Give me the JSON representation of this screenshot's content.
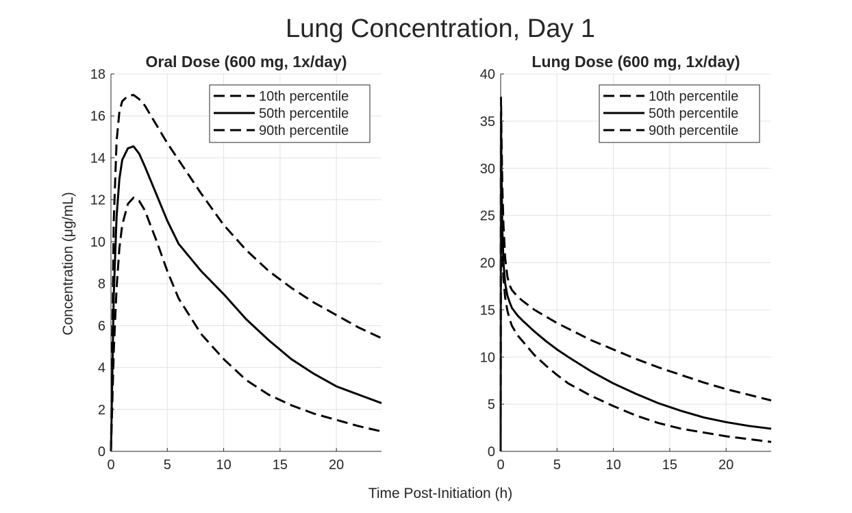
{
  "figure": {
    "title": "Lung Concentration, Day 1",
    "shared_xlabel": "Time Post-Initiation (h)",
    "shared_ylabel": "Concentration  (μg/mL)"
  },
  "chart_data": [
    {
      "type": "line",
      "title": "Oral Dose (600 mg, 1x/day)",
      "xlabel": "Time Post-Initiation (h)",
      "ylabel": "Concentration  (μg/mL)",
      "xlim": [
        0,
        24
      ],
      "ylim": [
        0,
        18
      ],
      "xticks": [
        0,
        5,
        10,
        15,
        20
      ],
      "yticks": [
        0,
        2,
        4,
        6,
        8,
        10,
        12,
        14,
        16,
        18
      ],
      "grid": true,
      "legend_position": "top-right",
      "series": [
        {
          "name": "10th  percentile",
          "style": "dashed",
          "x": [
            0,
            0.25,
            0.5,
            0.75,
            1,
            1.5,
            2,
            2.5,
            3,
            4,
            5,
            6,
            8,
            10,
            12,
            14,
            16,
            18,
            20,
            22,
            24
          ],
          "y": [
            0,
            11,
            14.8,
            16.2,
            16.7,
            16.95,
            17.0,
            16.8,
            16.5,
            15.6,
            14.7,
            13.9,
            12.3,
            10.8,
            9.6,
            8.6,
            7.8,
            7.1,
            6.5,
            5.9,
            5.4
          ]
        },
        {
          "name": "50th  percentile",
          "style": "solid",
          "x": [
            0,
            0.25,
            0.5,
            0.75,
            1,
            1.5,
            2,
            2.5,
            3,
            4,
            5,
            6,
            8,
            10,
            12,
            14,
            16,
            18,
            20,
            22,
            24
          ],
          "y": [
            0,
            7.5,
            11.2,
            13.0,
            13.9,
            14.45,
            14.55,
            14.2,
            13.6,
            12.3,
            11.0,
            9.9,
            8.6,
            7.5,
            6.3,
            5.3,
            4.4,
            3.7,
            3.1,
            2.7,
            2.3
          ]
        },
        {
          "name": "90th  percentile",
          "style": "dashed",
          "x": [
            0,
            0.25,
            0.5,
            0.75,
            1,
            1.5,
            2,
            2.5,
            3,
            4,
            5,
            6,
            8,
            10,
            12,
            14,
            16,
            18,
            20,
            22,
            24
          ],
          "y": [
            0,
            4.8,
            7.8,
            9.7,
            10.8,
            11.8,
            12.1,
            11.95,
            11.5,
            10.1,
            8.6,
            7.3,
            5.6,
            4.4,
            3.4,
            2.7,
            2.2,
            1.8,
            1.5,
            1.2,
            0.95
          ]
        }
      ]
    },
    {
      "type": "line",
      "title": "Lung Dose (600 mg, 1x/day)",
      "xlabel": "Time Post-Initiation (h)",
      "ylabel": "",
      "xlim": [
        0,
        24
      ],
      "ylim": [
        0,
        40
      ],
      "xticks": [
        0,
        5,
        10,
        15,
        20
      ],
      "yticks": [
        0,
        5,
        10,
        15,
        20,
        25,
        30,
        35,
        40
      ],
      "grid": true,
      "legend_position": "top-right",
      "series": [
        {
          "name": "10th  percentile",
          "style": "dashed",
          "x": [
            0,
            0.03,
            0.08,
            0.15,
            0.25,
            0.4,
            0.6,
            0.8,
            1,
            1.5,
            2,
            3,
            4,
            5,
            6,
            8,
            10,
            12,
            14,
            16,
            18,
            20,
            22,
            24
          ],
          "y": [
            0,
            37.5,
            33,
            28,
            24,
            20.5,
            18.5,
            17.6,
            17.1,
            16.4,
            15.9,
            15.0,
            14.3,
            13.6,
            13.0,
            11.8,
            10.8,
            9.8,
            8.9,
            8.1,
            7.3,
            6.6,
            6.0,
            5.4
          ]
        },
        {
          "name": "50th  percentile",
          "style": "solid",
          "x": [
            0,
            0.03,
            0.08,
            0.15,
            0.25,
            0.4,
            0.6,
            0.8,
            1,
            1.5,
            2,
            3,
            4,
            5,
            6,
            8,
            10,
            12,
            14,
            16,
            18,
            20,
            22,
            24
          ],
          "y": [
            0,
            36,
            29,
            23.5,
            20,
            17.8,
            16.5,
            15.8,
            15.2,
            14.4,
            13.8,
            12.7,
            11.7,
            10.8,
            10.0,
            8.5,
            7.2,
            6.1,
            5.1,
            4.3,
            3.6,
            3.1,
            2.7,
            2.4
          ]
        },
        {
          "name": "90th  percentile",
          "style": "dashed",
          "x": [
            0,
            0.03,
            0.08,
            0.15,
            0.25,
            0.4,
            0.6,
            0.8,
            1,
            1.5,
            2,
            3,
            4,
            5,
            6,
            8,
            10,
            12,
            14,
            16,
            18,
            20,
            22,
            24
          ],
          "y": [
            0,
            33,
            26,
            21,
            18.3,
            16.3,
            14.9,
            14.0,
            13.3,
            12.3,
            11.6,
            10.2,
            9.1,
            8.1,
            7.2,
            5.9,
            4.8,
            3.8,
            3.0,
            2.4,
            2.0,
            1.6,
            1.3,
            1.0
          ]
        }
      ]
    }
  ]
}
